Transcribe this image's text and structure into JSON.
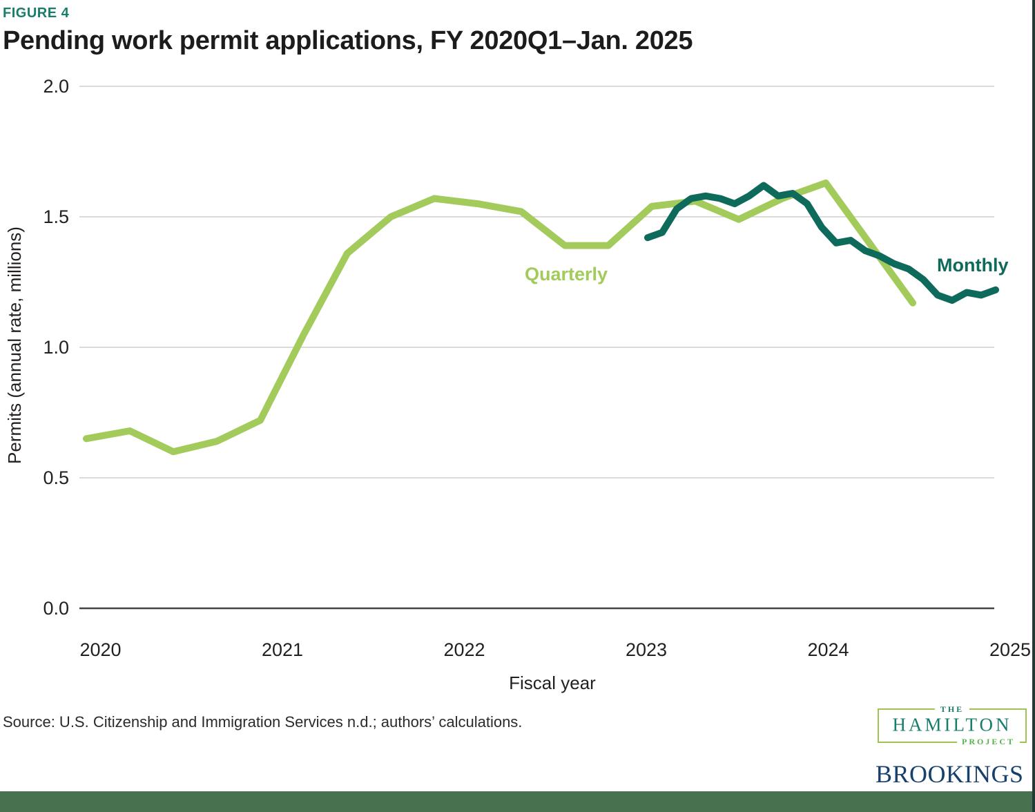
{
  "page": {
    "figure_label": "FIGURE 4",
    "title": "Pending work permit applications, FY 2020Q1–Jan. 2025",
    "source_note": "Source: U.S. Citizenship and Immigration Services n.d.; authors’ calculations.",
    "colors": {
      "figure_label_teal": "#177e6b",
      "quarterly_green": "#a2cb5c",
      "monthly_teal": "#0e6a5a",
      "bottom_bar_green": "#487150",
      "right_border_dark": "#203a34",
      "brookings_navy": "#17406d",
      "logo_border_green": "#9ec353",
      "logo_project_green": "#56b14c",
      "gridline_gray": "#cfcfcf",
      "axis_dark": "#414042"
    }
  },
  "chart_data": {
    "type": "line",
    "title": "Pending work permit applications, FY 2020Q1–Jan. 2025",
    "xlabel": "Fiscal year",
    "ylabel": "Permits (annual rate, millions)",
    "ylim": [
      0.0,
      2.0
    ],
    "grid": true,
    "legend_position": "inline-labels-on-chart",
    "yticks": [
      "0.0",
      "0.5",
      "1.0",
      "1.5",
      "2.0"
    ],
    "xticks": [
      "2020",
      "2021",
      "2022",
      "2023",
      "2024",
      "2025"
    ],
    "series": [
      {
        "name": "Quarterly",
        "color": "#a2cb5c",
        "labels": [
          "FY2020 Q1",
          "FY2020 Q2",
          "FY2020 Q3",
          "FY2020 Q4",
          "FY2021 Q1",
          "FY2021 Q2",
          "FY2021 Q3",
          "FY2021 Q4",
          "FY2022 Q1",
          "FY2022 Q2",
          "FY2022 Q3",
          "FY2022 Q4",
          "FY2023 Q1",
          "FY2023 Q2",
          "FY2023 Q3",
          "FY2023 Q4",
          "FY2024 Q1",
          "FY2024 Q2",
          "FY2024 Q3",
          "FY2024 Q4"
        ],
        "values": [
          0.65,
          0.68,
          0.6,
          0.64,
          0.72,
          1.05,
          1.36,
          1.5,
          1.57,
          1.55,
          1.52,
          1.39,
          1.39,
          1.54,
          1.56,
          1.49,
          1.57,
          1.63,
          1.4,
          1.17
        ]
      },
      {
        "name": "Monthly",
        "color": "#0e6a5a",
        "labels": [
          "Jan. 2023",
          "Feb. 2023",
          "Mar. 2023",
          "Apr. 2023",
          "May 2023",
          "Jun. 2023",
          "Jul. 2023",
          "Aug. 2023",
          "Sep. 2023",
          "Oct. 2023",
          "Nov. 2023",
          "Dec. 2023",
          "Jan. 2024",
          "Feb. 2024",
          "Mar. 2024",
          "Apr. 2024",
          "May 2024",
          "Jun. 2024",
          "Jul. 2024",
          "Aug. 2024",
          "Sep. 2024",
          "Oct. 2024",
          "Nov. 2024",
          "Dec. 2024",
          "Jan. 2025"
        ],
        "values": [
          1.42,
          1.44,
          1.53,
          1.57,
          1.58,
          1.57,
          1.55,
          1.58,
          1.62,
          1.58,
          1.59,
          1.55,
          1.46,
          1.4,
          1.41,
          1.37,
          1.35,
          1.32,
          1.3,
          1.26,
          1.2,
          1.18,
          1.21,
          1.2,
          1.22
        ]
      }
    ]
  },
  "logos": {
    "hamilton": {
      "the": "THE",
      "name": "HAMILTON",
      "project": "PROJECT"
    },
    "brookings": "BROOKINGS"
  }
}
